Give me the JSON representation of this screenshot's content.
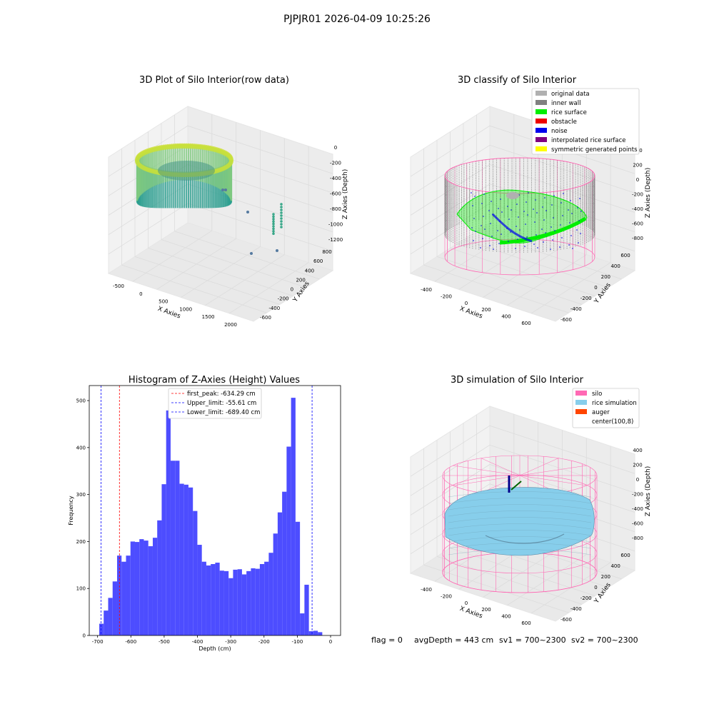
{
  "figure": {
    "suptitle": "PJPJR01 2026-04-09 10:25:26",
    "status_line": {
      "flag": "flag = 0",
      "avg_depth": "avgDepth = 443 cm",
      "sv1": "sv1 = 700~2300",
      "sv2": "sv2 = 700~2300"
    }
  },
  "colors": {
    "original_data": "#b0b0b0",
    "inner_wall": "#808080",
    "rice_surface": "#00ee00",
    "obstacle": "#ee0000",
    "noise": "#0000ee",
    "interpolated": "#800080",
    "symmetric": "#ffff00",
    "silo": "#ff69b4",
    "rice_sim": "#87ceeb",
    "auger": "#ff4500",
    "hist_bar": "#4d4dff",
    "first_peak": "#ff0000",
    "limit": "#0000ff",
    "pane": "#f2f2f2",
    "grid": "#dcdcdc"
  },
  "chart_data": [
    {
      "type": "scatter",
      "title": "3D Plot of Silo Interior(row data)",
      "xlabel": "X Axies",
      "ylabel": "Y Axies",
      "zlabel": "Z Axies (Depth)",
      "x_ticks": [
        "-500",
        "0",
        "500",
        "1000",
        "1500",
        "2000"
      ],
      "y_ticks": [
        "-600",
        "-400",
        "-200",
        "0",
        "200",
        "400",
        "600",
        "800"
      ],
      "z_ticks": [
        "-1200",
        "-1000",
        "-800",
        "-600",
        "-400",
        "-200",
        "0"
      ]
    },
    {
      "type": "scatter",
      "title": "3D classify of Silo Interior",
      "xlabel": "X Axies",
      "ylabel": "Y Axies",
      "zlabel": "Z Axies (Depth)",
      "x_ticks": [
        "-400",
        "-200",
        "0",
        "200",
        "400",
        "600"
      ],
      "y_ticks": [
        "-600",
        "-400",
        "-200",
        "0",
        "200",
        "400",
        "600"
      ],
      "z_ticks": [
        "-800",
        "-600",
        "-400",
        "-200",
        "0",
        "200",
        "400"
      ],
      "legend": [
        {
          "label": "original data",
          "color": "#b0b0b0"
        },
        {
          "label": "inner wall",
          "color": "#808080"
        },
        {
          "label": "rice surface",
          "color": "#00ee00"
        },
        {
          "label": "obstacle",
          "color": "#ee0000"
        },
        {
          "label": "noise",
          "color": "#0000ee"
        },
        {
          "label": "interpolated rice surface",
          "color": "#800080"
        },
        {
          "label": "symmetric generated points",
          "color": "#ffff00"
        }
      ],
      "legend_position": "top-right"
    },
    {
      "type": "bar",
      "title": "Histogram of Z-Axies (Height) Values",
      "xlabel": "Depth (cm)",
      "ylabel": "Frequency",
      "xlim": [
        -725,
        30
      ],
      "ylim": [
        0,
        532
      ],
      "x_ticks": [
        -700,
        -600,
        -500,
        -400,
        -300,
        -200,
        -100,
        0
      ],
      "y_ticks": [
        0,
        100,
        200,
        300,
        400,
        500
      ],
      "bin_start": -695,
      "bin_width": 13.4,
      "values": [
        25,
        53,
        80,
        115,
        170,
        157,
        170,
        200,
        199,
        205,
        202,
        190,
        208,
        245,
        322,
        479,
        372,
        372,
        323,
        321,
        315,
        265,
        193,
        157,
        149,
        152,
        155,
        138,
        137,
        122,
        140,
        141,
        130,
        137,
        143,
        142,
        152,
        157,
        176,
        217,
        262,
        306,
        402,
        506,
        242,
        47,
        108,
        9,
        10,
        7
      ],
      "vlines": [
        {
          "label": "first_peak: -634.29 cm",
          "x": -634.29,
          "color": "#ff0000"
        },
        {
          "label": "Upper_limit: -55.61 cm",
          "x": -55.61,
          "color": "#0000ff"
        },
        {
          "label": "Lower_limit: -689.40 cm",
          "x": -689.4,
          "color": "#0000ff"
        }
      ],
      "legend_position": "top-center"
    },
    {
      "type": "scatter",
      "title": "3D simulation of Silo Interior",
      "xlabel": "X Axies",
      "ylabel": "Y Axies",
      "zlabel": "Z Axies (Depth)",
      "x_ticks": [
        "-400",
        "-200",
        "0",
        "200",
        "400",
        "600"
      ],
      "y_ticks": [
        "-600",
        "-400",
        "-200",
        "0",
        "200",
        "400",
        "600"
      ],
      "z_ticks": [
        "-800",
        "-600",
        "-400",
        "-200",
        "0",
        "200",
        "400"
      ],
      "legend": [
        {
          "label": "silo",
          "color": "#ff69b4"
        },
        {
          "label": "rice simulation",
          "color": "#87ceeb"
        },
        {
          "label": "auger",
          "color": "#ff4500"
        },
        {
          "label": "center(100,8)",
          "color": "#ffffff"
        }
      ],
      "legend_position": "top-right"
    }
  ]
}
